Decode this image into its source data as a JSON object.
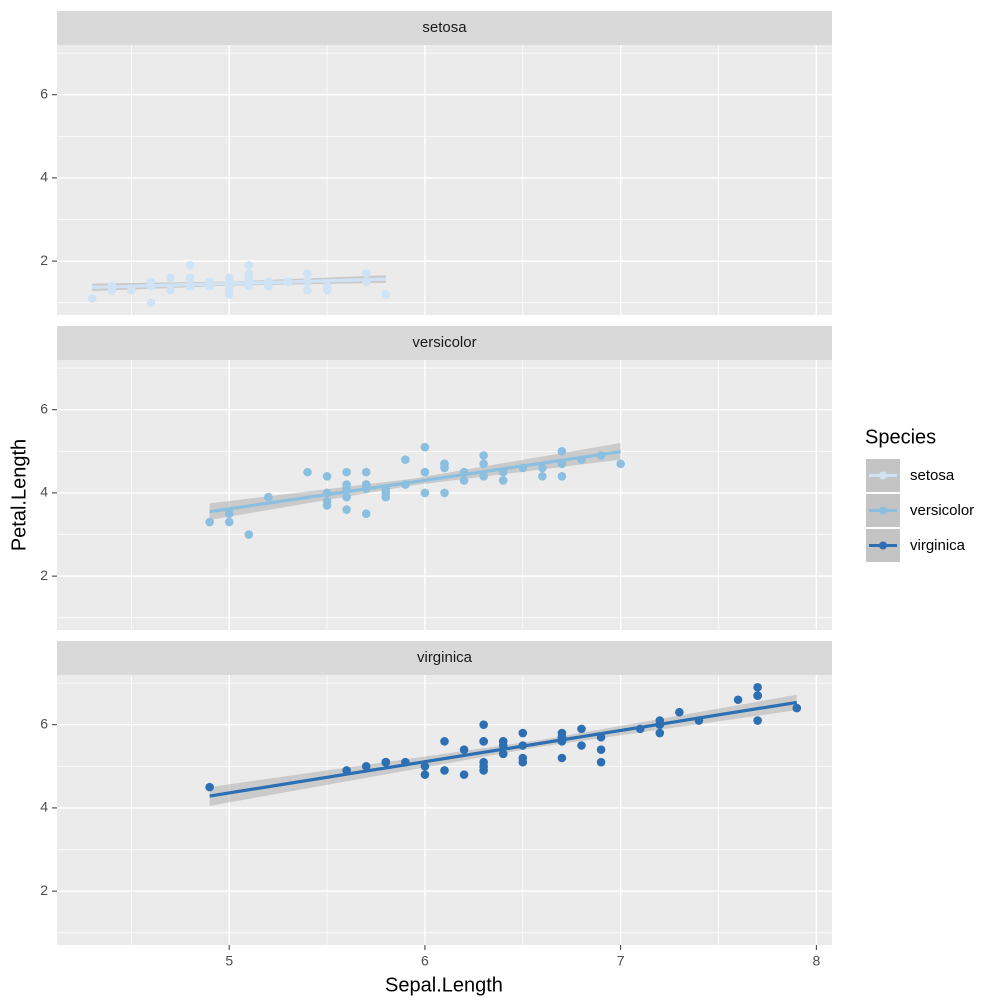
{
  "chart_data": {
    "type": "scatter",
    "facet": true,
    "xlabel": "Sepal.Length",
    "ylabel": "Petal.Length",
    "legend_title": "Species",
    "xlim": [
      4.12,
      8.08
    ],
    "xticks": [
      5,
      6,
      7,
      8
    ],
    "x_minor_ticks": [
      4.5,
      5.5,
      6.5,
      7.5
    ],
    "ylim": [
      0.705,
      7.195
    ],
    "yticks": [
      2,
      4,
      6
    ],
    "y_minor_ticks": [
      1,
      3,
      5,
      7
    ],
    "grid": true,
    "legend": "right",
    "series": [
      {
        "name": "setosa",
        "color": "#cfe3f4",
        "x": [
          5.1,
          4.9,
          4.7,
          4.6,
          5.0,
          5.4,
          4.6,
          5.0,
          4.4,
          4.9,
          5.4,
          4.8,
          4.8,
          4.3,
          5.8,
          5.7,
          5.4,
          5.1,
          5.7,
          5.1,
          5.4,
          5.1,
          4.6,
          5.1,
          4.8,
          5.0,
          5.0,
          5.2,
          5.2,
          4.7,
          4.8,
          5.4,
          5.2,
          5.5,
          4.9,
          5.0,
          5.5,
          4.9,
          4.4,
          5.1,
          5.0,
          4.5,
          4.4,
          5.0,
          5.1,
          4.8,
          5.1,
          4.6,
          5.3,
          5.0
        ],
        "values": [
          1.4,
          1.4,
          1.3,
          1.5,
          1.4,
          1.7,
          1.4,
          1.5,
          1.4,
          1.5,
          1.5,
          1.6,
          1.4,
          1.1,
          1.2,
          1.5,
          1.3,
          1.4,
          1.7,
          1.5,
          1.7,
          1.5,
          1.0,
          1.7,
          1.9,
          1.6,
          1.6,
          1.5,
          1.4,
          1.6,
          1.6,
          1.5,
          1.5,
          1.4,
          1.5,
          1.2,
          1.3,
          1.4,
          1.3,
          1.5,
          1.3,
          1.3,
          1.3,
          1.6,
          1.9,
          1.4,
          1.6,
          1.4,
          1.5,
          1.4
        ],
        "fit_x": [
          4.3,
          5.8
        ],
        "fit_values": [
          1.369,
          1.566
        ],
        "band_x": [
          4.3,
          5.006,
          5.8
        ],
        "band_lower": [
          1.28,
          1.41,
          1.48
        ],
        "band_upper": [
          1.46,
          1.51,
          1.66
        ]
      },
      {
        "name": "versicolor",
        "color": "#8abfe0",
        "x": [
          7.0,
          6.4,
          6.9,
          5.5,
          6.5,
          5.7,
          6.3,
          4.9,
          6.6,
          5.2,
          5.0,
          5.9,
          6.0,
          6.1,
          5.6,
          6.7,
          5.6,
          5.8,
          6.2,
          5.6,
          5.9,
          6.1,
          6.3,
          6.1,
          6.4,
          6.6,
          6.8,
          6.7,
          6.0,
          5.7,
          5.5,
          5.5,
          5.8,
          6.0,
          5.4,
          6.0,
          6.7,
          6.3,
          5.6,
          5.5,
          5.5,
          6.1,
          5.8,
          5.0,
          5.6,
          5.7,
          5.7,
          6.2,
          5.1,
          5.7
        ],
        "values": [
          4.7,
          4.5,
          4.9,
          4.0,
          4.6,
          4.5,
          4.7,
          3.3,
          4.6,
          3.9,
          3.5,
          4.2,
          4.0,
          4.7,
          3.6,
          4.4,
          4.5,
          4.1,
          4.5,
          3.9,
          4.8,
          4.0,
          4.9,
          4.7,
          4.3,
          4.4,
          4.8,
          5.0,
          4.5,
          3.5,
          3.8,
          3.7,
          3.9,
          5.1,
          4.5,
          4.5,
          4.7,
          4.4,
          4.1,
          4.0,
          4.4,
          4.6,
          4.0,
          3.3,
          4.2,
          4.2,
          4.2,
          4.3,
          3.0,
          4.1
        ],
        "fit_x": [
          4.9,
          7.0
        ],
        "fit_values": [
          3.549,
          4.991
        ],
        "band_x": [
          4.9,
          5.936,
          7.0
        ],
        "band_lower": [
          3.35,
          4.18,
          4.8
        ],
        "band_upper": [
          3.75,
          4.34,
          5.2
        ]
      },
      {
        "name": "virginica",
        "color": "#2c6fb3",
        "x": [
          6.3,
          5.8,
          7.1,
          6.3,
          6.5,
          7.6,
          4.9,
          7.3,
          6.7,
          7.2,
          6.5,
          6.4,
          6.8,
          5.7,
          5.8,
          6.4,
          6.5,
          7.7,
          7.7,
          6.0,
          6.9,
          5.6,
          7.7,
          6.3,
          6.7,
          7.2,
          6.2,
          6.1,
          6.4,
          7.2,
          7.4,
          7.9,
          6.4,
          6.3,
          6.1,
          7.7,
          6.3,
          6.4,
          6.0,
          6.9,
          6.7,
          6.9,
          5.8,
          6.8,
          6.7,
          6.7,
          6.3,
          6.5,
          6.2,
          5.9
        ],
        "values": [
          6.0,
          5.1,
          5.9,
          5.6,
          5.8,
          6.6,
          4.5,
          6.3,
          5.8,
          6.1,
          5.1,
          5.3,
          5.5,
          5.0,
          5.1,
          5.3,
          5.5,
          6.7,
          6.9,
          5.0,
          5.7,
          4.9,
          6.7,
          4.9,
          5.7,
          6.0,
          4.8,
          4.9,
          5.6,
          5.8,
          6.1,
          6.4,
          5.6,
          5.1,
          5.6,
          6.1,
          5.6,
          5.5,
          4.8,
          5.4,
          5.6,
          5.1,
          5.1,
          5.9,
          5.7,
          5.2,
          5.0,
          5.2,
          5.4,
          5.1
        ],
        "fit_x": [
          4.9,
          7.9
        ],
        "fit_values": [
          4.286,
          6.536
        ],
        "band_x": [
          4.9,
          6.588,
          7.9
        ],
        "band_lower": [
          4.05,
          5.47,
          6.35
        ],
        "band_upper": [
          4.5,
          5.63,
          6.72
        ]
      }
    ]
  }
}
